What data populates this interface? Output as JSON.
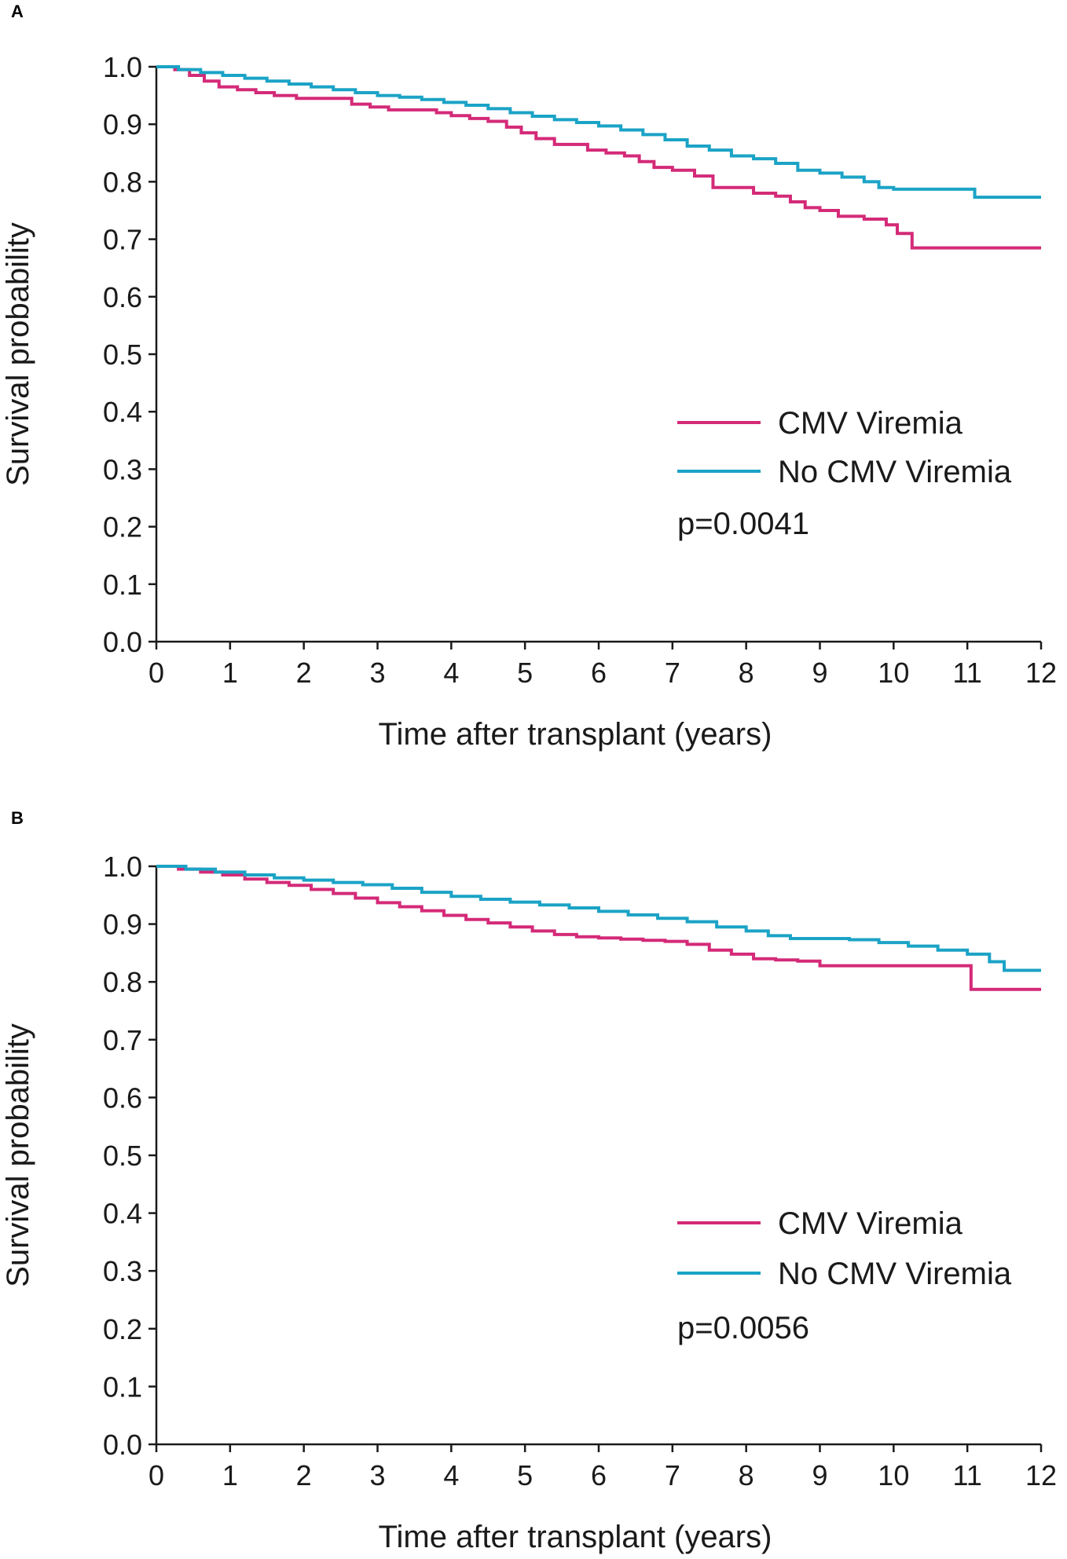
{
  "colors": {
    "cmv": "#d42a78",
    "no_cmv": "#1ba3c6",
    "axis": "#1a1a1a"
  },
  "chart_data": [
    {
      "panel_label": "A",
      "type": "line",
      "xlabel": "Time after transplant (years)",
      "ylabel": "Survival probability",
      "xlim": [
        0,
        12
      ],
      "ylim": [
        0,
        1
      ],
      "x_ticks": [
        0,
        1,
        2,
        3,
        4,
        5,
        6,
        7,
        8,
        9,
        10,
        11,
        12
      ],
      "x_tick_labels": [
        "0",
        "1",
        "2",
        "3",
        "4",
        "5",
        "6",
        "7",
        "8",
        "9",
        "10",
        "11",
        "12"
      ],
      "y_ticks": [
        0,
        0.1,
        0.2,
        0.3,
        0.4,
        0.5,
        0.6,
        0.7,
        0.8,
        0.9,
        1.0
      ],
      "y_tick_labels": [
        "0.0",
        "0.1",
        "0.2",
        "0.3",
        "0.4",
        "0.5",
        "0.6",
        "0.7",
        "0.8",
        "0.9",
        "1.0"
      ],
      "legend": {
        "placement": "center-right",
        "entries": [
          "CMV Viremia",
          "No CMV Viremia"
        ]
      },
      "annotation": "p=0.0041",
      "series": [
        {
          "name": "CMV Viremia",
          "color_key": "cmv",
          "x": [
            0,
            0.25,
            0.45,
            0.65,
            0.85,
            1.1,
            1.35,
            1.6,
            1.9,
            2.3,
            2.65,
            2.9,
            3.15,
            3.5,
            3.8,
            4.0,
            4.25,
            4.5,
            4.75,
            4.95,
            5.15,
            5.4,
            5.65,
            5.85,
            6.1,
            6.35,
            6.55,
            6.75,
            7.0,
            7.3,
            7.55,
            7.85,
            8.1,
            8.4,
            8.6,
            8.8,
            9.0,
            9.25,
            9.6,
            9.9,
            10.05,
            10.25,
            12.0
          ],
          "y": [
            1.0,
            0.995,
            0.985,
            0.975,
            0.965,
            0.96,
            0.955,
            0.95,
            0.945,
            0.945,
            0.935,
            0.93,
            0.925,
            0.925,
            0.92,
            0.915,
            0.91,
            0.905,
            0.895,
            0.885,
            0.875,
            0.865,
            0.865,
            0.855,
            0.85,
            0.845,
            0.835,
            0.825,
            0.82,
            0.81,
            0.79,
            0.79,
            0.78,
            0.775,
            0.765,
            0.755,
            0.75,
            0.74,
            0.735,
            0.725,
            0.71,
            0.685,
            0.685
          ]
        },
        {
          "name": "No CMV Viremia",
          "color_key": "no_cmv",
          "x": [
            0,
            0.3,
            0.6,
            0.9,
            1.2,
            1.5,
            1.8,
            2.1,
            2.4,
            2.7,
            3.0,
            3.3,
            3.6,
            3.9,
            4.2,
            4.5,
            4.8,
            5.1,
            5.4,
            5.7,
            6.0,
            6.3,
            6.6,
            6.9,
            7.2,
            7.5,
            7.8,
            8.1,
            8.4,
            8.7,
            9.0,
            9.3,
            9.6,
            9.8,
            10.0,
            10.3,
            10.6,
            11.1,
            12.0
          ],
          "y": [
            1.0,
            0.995,
            0.99,
            0.985,
            0.98,
            0.975,
            0.97,
            0.965,
            0.96,
            0.955,
            0.95,
            0.947,
            0.943,
            0.938,
            0.933,
            0.927,
            0.92,
            0.914,
            0.908,
            0.903,
            0.897,
            0.89,
            0.882,
            0.873,
            0.862,
            0.855,
            0.845,
            0.84,
            0.832,
            0.82,
            0.815,
            0.808,
            0.8,
            0.79,
            0.787,
            0.787,
            0.787,
            0.773,
            0.773
          ]
        }
      ]
    },
    {
      "panel_label": "B",
      "type": "line",
      "xlabel": "Time after transplant (years)",
      "ylabel": "Survival probability",
      "xlim": [
        0,
        12
      ],
      "ylim": [
        0,
        1
      ],
      "x_ticks": [
        0,
        1,
        2,
        3,
        4,
        5,
        6,
        7,
        8,
        9,
        10,
        11,
        12
      ],
      "x_tick_labels": [
        "0",
        "1",
        "2",
        "3",
        "4",
        "5",
        "6",
        "7",
        "8",
        "9",
        "10",
        "11",
        "12"
      ],
      "y_ticks": [
        0,
        0.1,
        0.2,
        0.3,
        0.4,
        0.5,
        0.6,
        0.7,
        0.8,
        0.9,
        1.0
      ],
      "y_tick_labels": [
        "0.0",
        "0.1",
        "0.2",
        "0.3",
        "0.4",
        "0.5",
        "0.6",
        "0.7",
        "0.8",
        "0.9",
        "1.0"
      ],
      "legend": {
        "placement": "center-right",
        "entries": [
          "CMV Viremia",
          "No CMV Viremia"
        ]
      },
      "annotation": "p=0.0056",
      "series": [
        {
          "name": "CMV Viremia",
          "color_key": "cmv",
          "x": [
            0,
            0.3,
            0.6,
            0.9,
            1.2,
            1.5,
            1.8,
            2.1,
            2.4,
            2.7,
            3.0,
            3.3,
            3.6,
            3.9,
            4.2,
            4.5,
            4.8,
            5.1,
            5.4,
            5.7,
            6.0,
            6.3,
            6.6,
            6.9,
            7.2,
            7.5,
            7.8,
            8.1,
            8.4,
            8.7,
            9.0,
            11.05,
            12.0
          ],
          "y": [
            1.0,
            0.995,
            0.99,
            0.985,
            0.978,
            0.972,
            0.967,
            0.96,
            0.953,
            0.945,
            0.937,
            0.93,
            0.923,
            0.915,
            0.908,
            0.902,
            0.895,
            0.888,
            0.882,
            0.878,
            0.876,
            0.874,
            0.872,
            0.87,
            0.865,
            0.855,
            0.848,
            0.84,
            0.838,
            0.836,
            0.828,
            0.787,
            0.787
          ]
        },
        {
          "name": "No CMV Viremia",
          "color_key": "no_cmv",
          "x": [
            0,
            0.4,
            0.8,
            1.2,
            1.6,
            2.0,
            2.4,
            2.8,
            3.2,
            3.6,
            4.0,
            4.4,
            4.8,
            5.2,
            5.6,
            6.0,
            6.4,
            6.8,
            7.2,
            7.6,
            8.0,
            8.3,
            8.6,
            9.0,
            9.4,
            9.8,
            10.2,
            10.6,
            11.0,
            11.3,
            11.5,
            12.0
          ],
          "y": [
            1.0,
            0.995,
            0.99,
            0.985,
            0.98,
            0.976,
            0.972,
            0.968,
            0.962,
            0.955,
            0.948,
            0.943,
            0.938,
            0.933,
            0.928,
            0.922,
            0.916,
            0.91,
            0.904,
            0.895,
            0.888,
            0.88,
            0.875,
            0.875,
            0.873,
            0.868,
            0.862,
            0.855,
            0.848,
            0.835,
            0.82,
            0.82
          ]
        }
      ]
    }
  ]
}
